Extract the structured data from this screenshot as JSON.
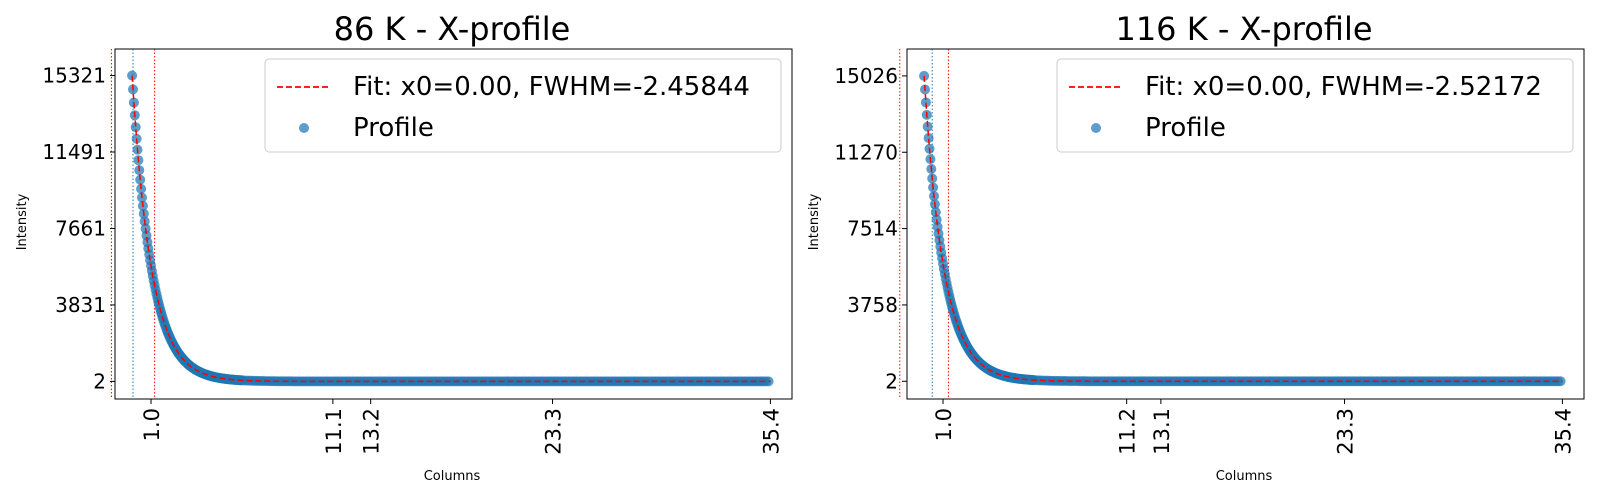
{
  "chart_data": [
    {
      "type": "scatter",
      "title": "86 K - X-profile",
      "xlabel": "Columns",
      "ylabel": "Intensity",
      "xlim": [
        -1.0,
        36.6
      ],
      "ylim": [
        -880,
        16650
      ],
      "xticks": [
        {
          "value": 1.0,
          "label": "1.0"
        },
        {
          "value": 11.1,
          "label": "11.1"
        },
        {
          "value": 13.2,
          "label": "13.2"
        },
        {
          "value": 23.3,
          "label": "23.3"
        },
        {
          "value": 35.4,
          "label": "35.4"
        }
      ],
      "yticks": [
        {
          "value": 2,
          "label": "2"
        },
        {
          "value": 3831,
          "label": "3831"
        },
        {
          "value": 7661,
          "label": "7661"
        },
        {
          "value": 11491,
          "label": "11491"
        },
        {
          "value": 15321,
          "label": "15321"
        }
      ],
      "vlines": [
        {
          "x": -1.2,
          "color": "#ff0000",
          "style": "dotted"
        },
        {
          "x": 1.2,
          "color": "#ff0000",
          "style": "dotted"
        },
        {
          "x": 0.0,
          "color": "#1f77b4",
          "style": "dotted"
        }
      ],
      "series": [
        {
          "name": "Profile",
          "kind": "scatter",
          "color": "#1f77b4",
          "x_start": -0.05,
          "x_end": 35.4,
          "peak": 15321,
          "decay_length": 1.08,
          "floor": 2
        },
        {
          "name": "Fit: x0=0.00, FWHM=-2.45844",
          "kind": "line",
          "color": "#ff0000",
          "style": "dashed",
          "x_start": -0.05,
          "x_end": 35.4,
          "peak": 15321,
          "decay_length": 1.08,
          "floor": 2
        }
      ],
      "legend": "top-right",
      "grid": false
    },
    {
      "type": "scatter",
      "title": "116 K - X-profile",
      "xlabel": "Columns",
      "ylabel": "Intensity",
      "xlim": [
        -1.0,
        36.6
      ],
      "ylim": [
        -870,
        16350
      ],
      "xticks": [
        {
          "value": 1.0,
          "label": "1.0"
        },
        {
          "value": 11.2,
          "label": "11.2"
        },
        {
          "value": 13.1,
          "label": "13.1"
        },
        {
          "value": 23.3,
          "label": "23.3"
        },
        {
          "value": 35.4,
          "label": "35.4"
        }
      ],
      "yticks": [
        {
          "value": 2,
          "label": "2"
        },
        {
          "value": 3758,
          "label": "3758"
        },
        {
          "value": 7514,
          "label": "7514"
        },
        {
          "value": 11270,
          "label": "11270"
        },
        {
          "value": 15026,
          "label": "15026"
        }
      ],
      "vlines": [
        {
          "x": -1.4,
          "color": "#ff0000",
          "style": "dotted"
        },
        {
          "x": 1.3,
          "color": "#ff0000",
          "style": "dotted"
        },
        {
          "x": 0.4,
          "color": "#1f77b4",
          "style": "dotted"
        }
      ],
      "series": [
        {
          "name": "Profile",
          "kind": "scatter",
          "color": "#1f77b4",
          "x_start": -0.05,
          "x_end": 35.4,
          "peak": 15026,
          "decay_length": 1.1,
          "floor": 2
        },
        {
          "name": "Fit: x0=0.00, FWHM=-2.52172",
          "kind": "line",
          "color": "#ff0000",
          "style": "dashed",
          "x_start": -0.05,
          "x_end": 35.4,
          "peak": 15026,
          "decay_length": 1.1,
          "floor": 2
        }
      ],
      "legend": "top-right",
      "grid": false
    }
  ]
}
